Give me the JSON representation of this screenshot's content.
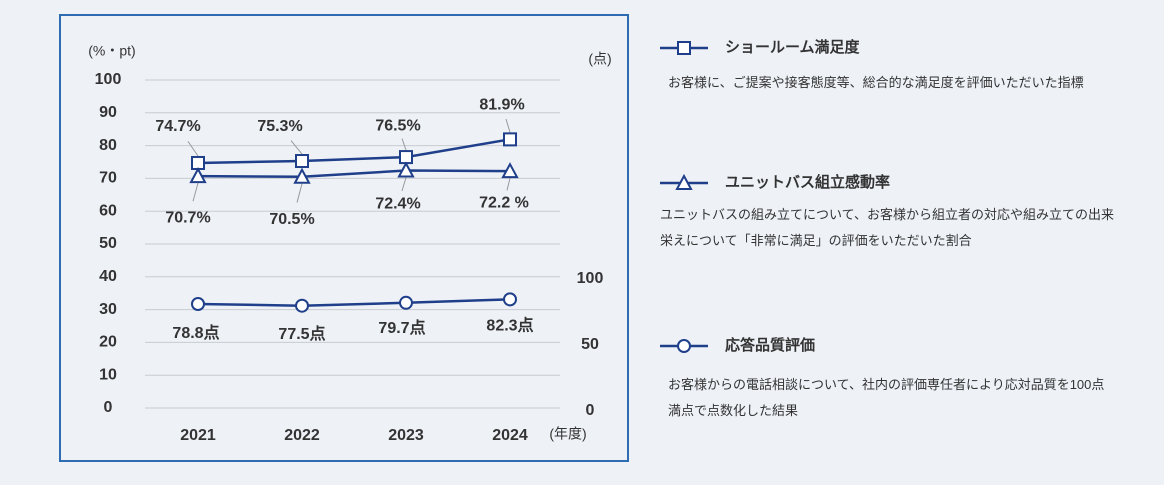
{
  "chart_data": {
    "type": "line",
    "ylabel": "(%・pt)",
    "y2label": "(点)",
    "xlabel": "(年度)",
    "categories": [
      "2021",
      "2022",
      "2023",
      "2024"
    ],
    "ylim": [
      0,
      100
    ],
    "yticks": [
      0,
      10,
      20,
      30,
      40,
      50,
      60,
      70,
      80,
      90,
      100
    ],
    "y2lim": [
      0,
      248.5
    ],
    "y2ticks": [
      0,
      50,
      100
    ],
    "grid": true,
    "series": [
      {
        "name": "ショールーム満足度",
        "color": "#1f3f8a",
        "marker": "square",
        "values": [
          74.7,
          75.3,
          76.5,
          81.9
        ],
        "value_labels": [
          "74.7%",
          "75.3%",
          "76.5%",
          "81.9%"
        ],
        "description": "お客様に、ご提案や接客態度等、総合的な満足度を評価いただいた指標"
      },
      {
        "name": "ユニットバス組立感動率",
        "color": "#1f3f8a",
        "marker": "triangle",
        "values": [
          70.7,
          70.5,
          72.4,
          72.2
        ],
        "value_labels": [
          "70.7%",
          "70.5%",
          "72.4%",
          "72.2 %"
        ],
        "description": "ユニットバスの組み立てについて、お客様から組立者の対応や組み立ての出来栄えについて「非常に満足」の評価をいただいた割合"
      },
      {
        "name": "応答品質評価",
        "color": "#1f3f8a",
        "marker": "circle",
        "axis": "y2",
        "values": [
          78.8,
          77.5,
          79.7,
          82.3
        ],
        "value_labels": [
          "78.8点",
          "77.5点",
          "79.7点",
          "82.3点"
        ],
        "description": "お客様からの電話相談について、社内の評価専任者により応対品質を100点満点で点数化した結果"
      }
    ]
  }
}
